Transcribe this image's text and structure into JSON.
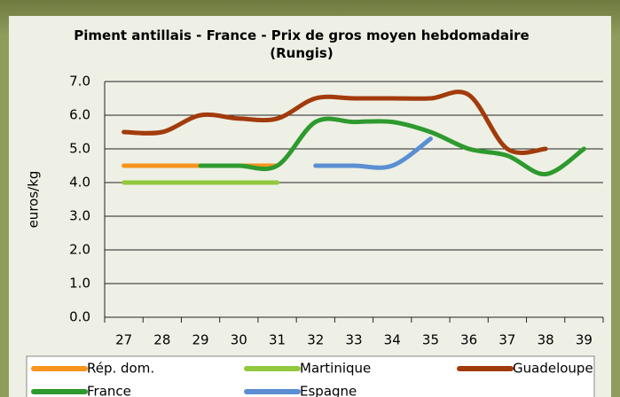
{
  "chart_data": {
    "type": "line",
    "title": "Piment antillais - France - Prix de gros moyen hebdomadaire (Rungis)",
    "y_label": "euros/kg",
    "categories": [
      "27",
      "28",
      "29",
      "30",
      "31",
      "32",
      "33",
      "34",
      "35",
      "36",
      "37",
      "38",
      "39"
    ],
    "series": [
      {
        "name": "Rép. dom.",
        "color": "#f7941d",
        "values": [
          4.5,
          4.5,
          4.5,
          4.5,
          4.5,
          null,
          null,
          null,
          null,
          null,
          null,
          null,
          null
        ]
      },
      {
        "name": "Martinique",
        "color": "#92c83e",
        "values": [
          4.0,
          4.0,
          4.0,
          4.0,
          4.0,
          null,
          null,
          null,
          null,
          null,
          null,
          null,
          null
        ]
      },
      {
        "name": "Guadeloupe",
        "color": "#a23b0c",
        "values": [
          5.5,
          5.5,
          6.0,
          5.9,
          5.9,
          6.5,
          6.5,
          6.5,
          6.5,
          6.6,
          5.0,
          5.0,
          null
        ]
      },
      {
        "name": "France",
        "color": "#2e9a2e",
        "values": [
          null,
          null,
          4.5,
          4.5,
          4.5,
          5.8,
          5.8,
          5.8,
          5.5,
          5.0,
          4.8,
          4.25,
          5.0
        ]
      },
      {
        "name": "Espagne",
        "color": "#5b8fd2",
        "values": [
          null,
          null,
          null,
          null,
          null,
          4.5,
          4.5,
          4.5,
          5.3,
          null,
          null,
          null,
          null
        ]
      }
    ],
    "ylim": [
      0,
      7
    ],
    "yticks": [
      {
        "value": 0,
        "label": "0.0"
      },
      {
        "value": 1,
        "label": "1.0"
      },
      {
        "value": 2,
        "label": "2.0"
      },
      {
        "value": 3,
        "label": "3.0"
      },
      {
        "value": 4,
        "label": "4.0"
      },
      {
        "value": 5,
        "label": "5.0"
      },
      {
        "value": 6,
        "label": "6.0"
      },
      {
        "value": 7,
        "label": "7.0"
      }
    ],
    "grid": true
  }
}
